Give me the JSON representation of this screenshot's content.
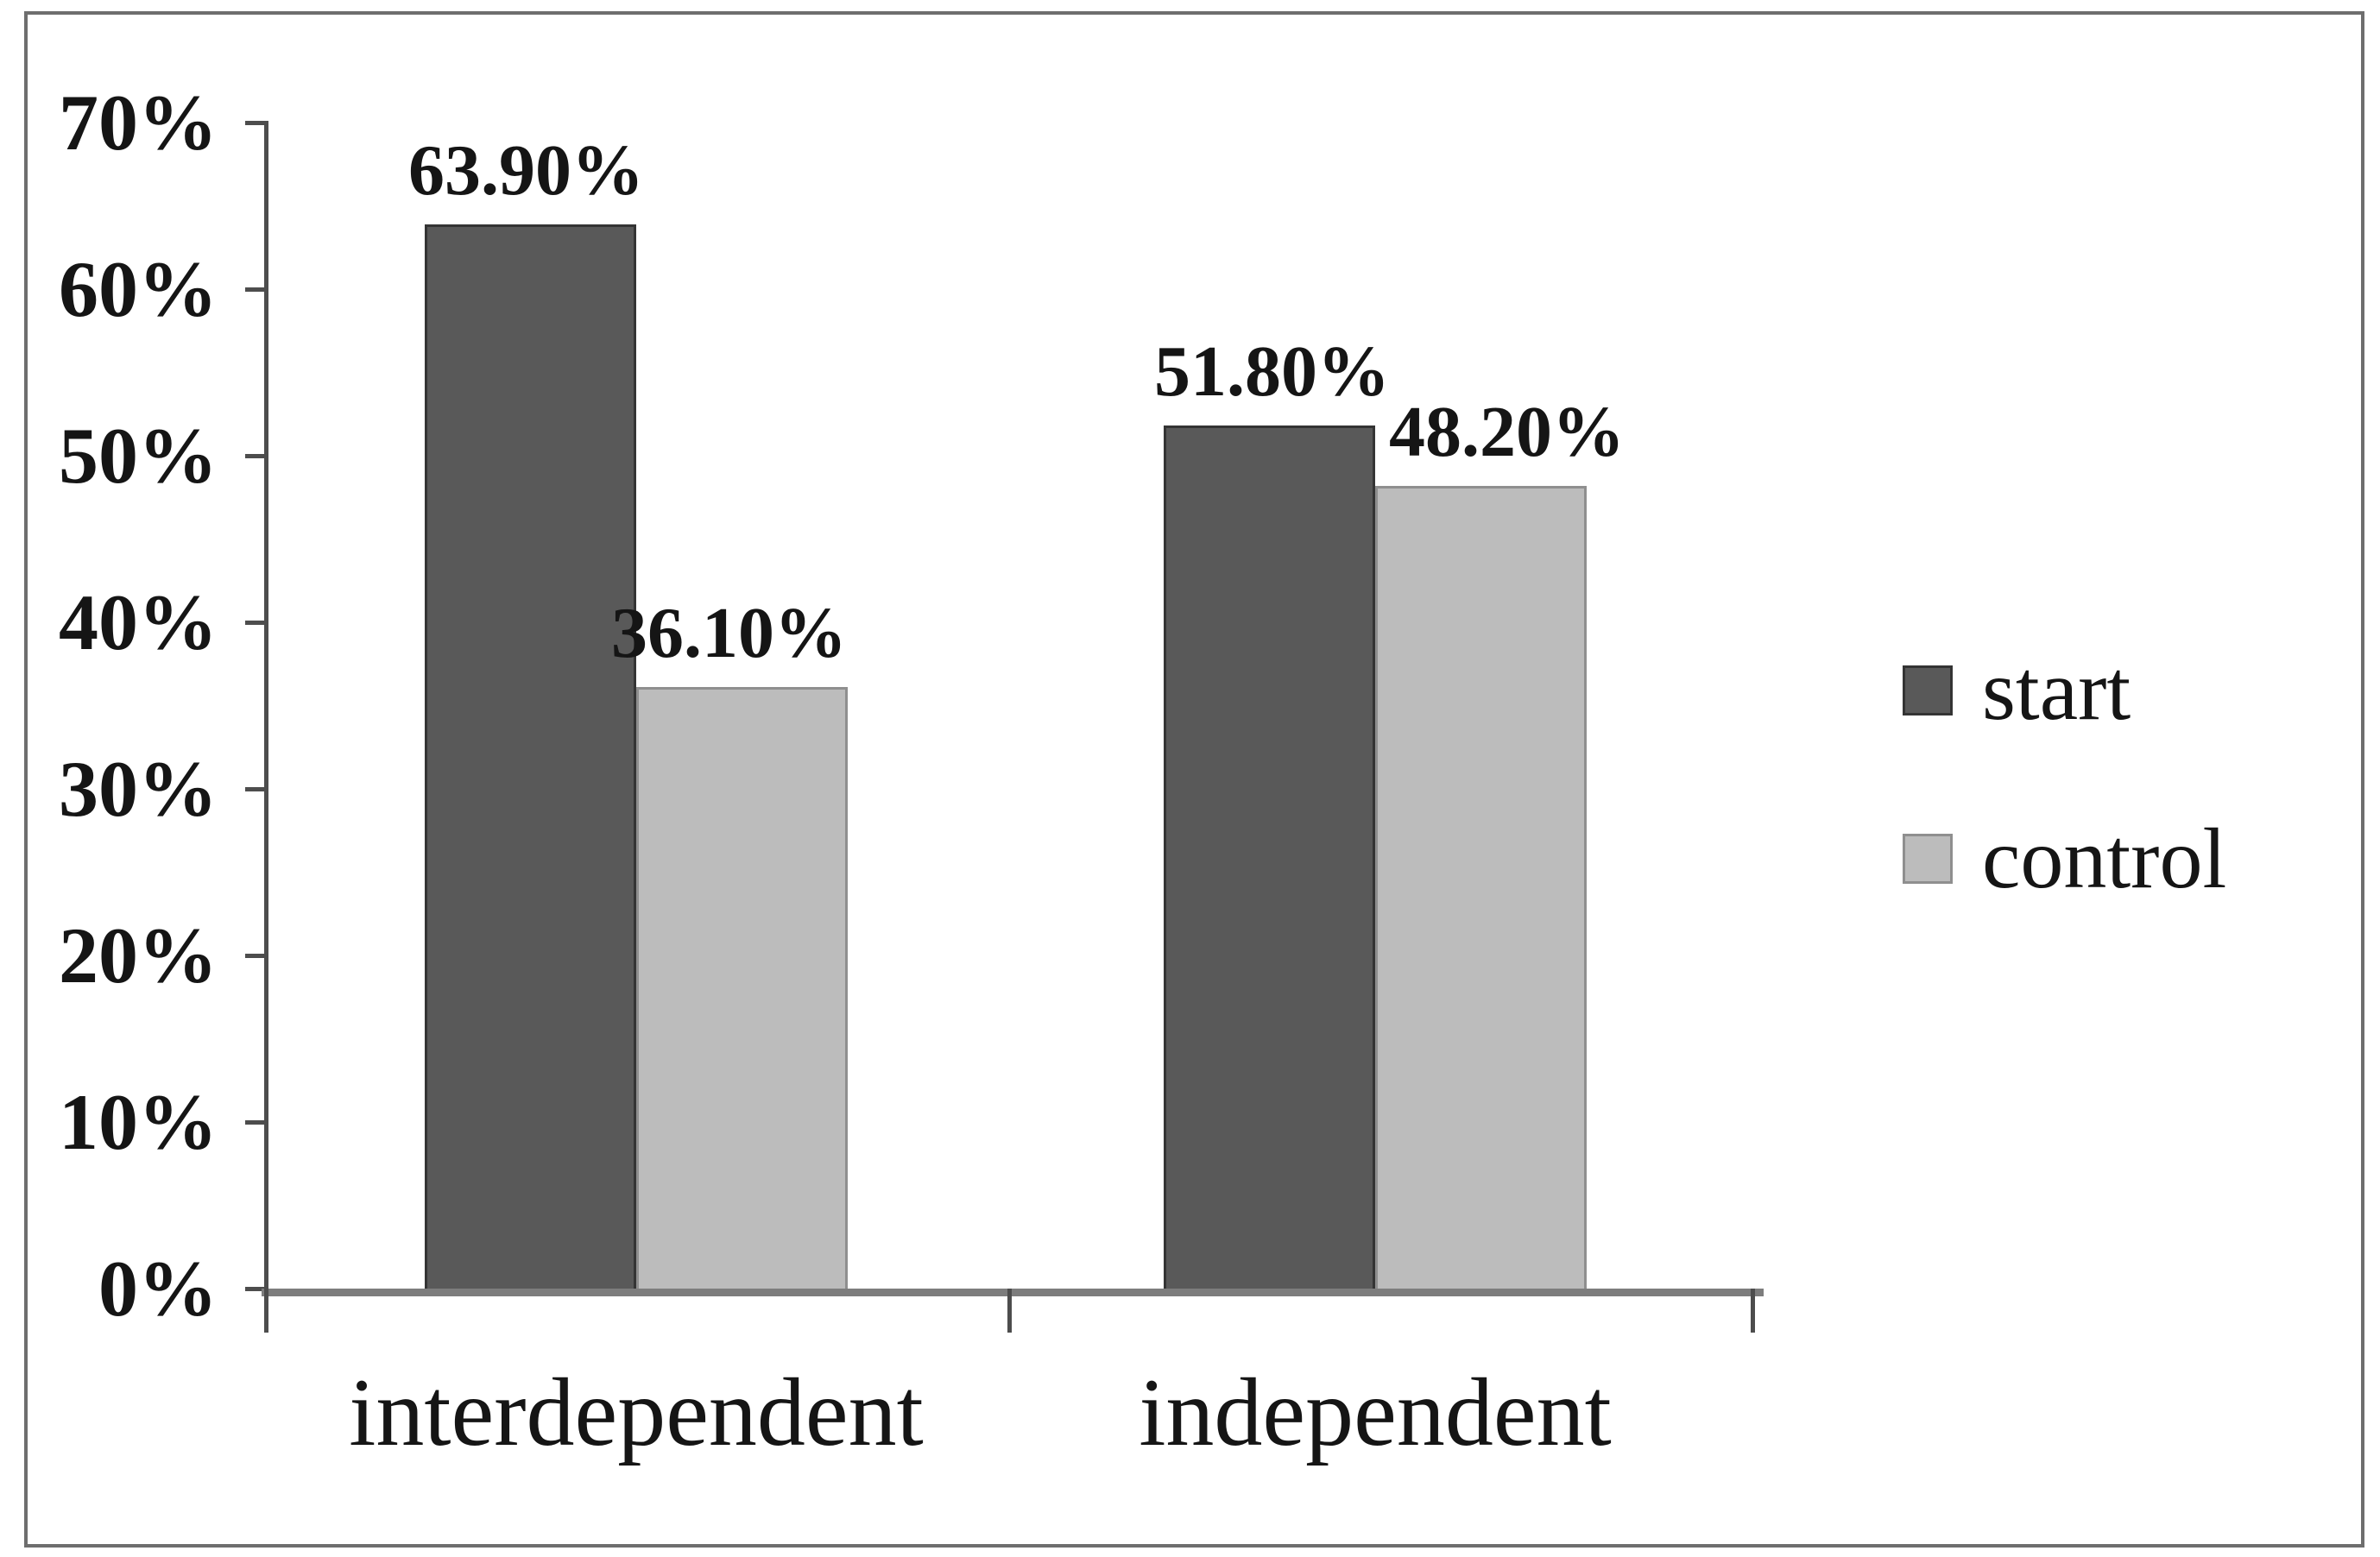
{
  "figure": {
    "background": "#ffffff",
    "border_color": "#6e6e6e",
    "text_color": "#151515",
    "axis_line_color": "#4d4d4d",
    "baseline_color": "#7d7d7d"
  },
  "chart_data": {
    "type": "bar",
    "title": "",
    "xlabel": "",
    "ylabel": "",
    "categories": [
      "interdependent",
      "independent"
    ],
    "series": [
      {
        "name": "start",
        "color": "#595959",
        "border_color": "#343434",
        "values": [
          63.9,
          51.8
        ],
        "labels": [
          "63.90%",
          "51.80%"
        ]
      },
      {
        "name": "control",
        "color": "#bcbcbc",
        "border_color": "#8f8f8f",
        "values": [
          36.1,
          48.2
        ],
        "labels": [
          "36.10%",
          "48.20%"
        ]
      }
    ],
    "ylim": [
      0,
      70
    ],
    "yticks": [
      0,
      10,
      20,
      30,
      40,
      50,
      60,
      70
    ],
    "ytick_labels": [
      "0%",
      "10%",
      "20%",
      "30%",
      "40%",
      "50%",
      "60%",
      "70%"
    ],
    "grid": false,
    "data_labels_shown": true,
    "legend_position": "right",
    "legend": [
      "start",
      "control"
    ]
  }
}
